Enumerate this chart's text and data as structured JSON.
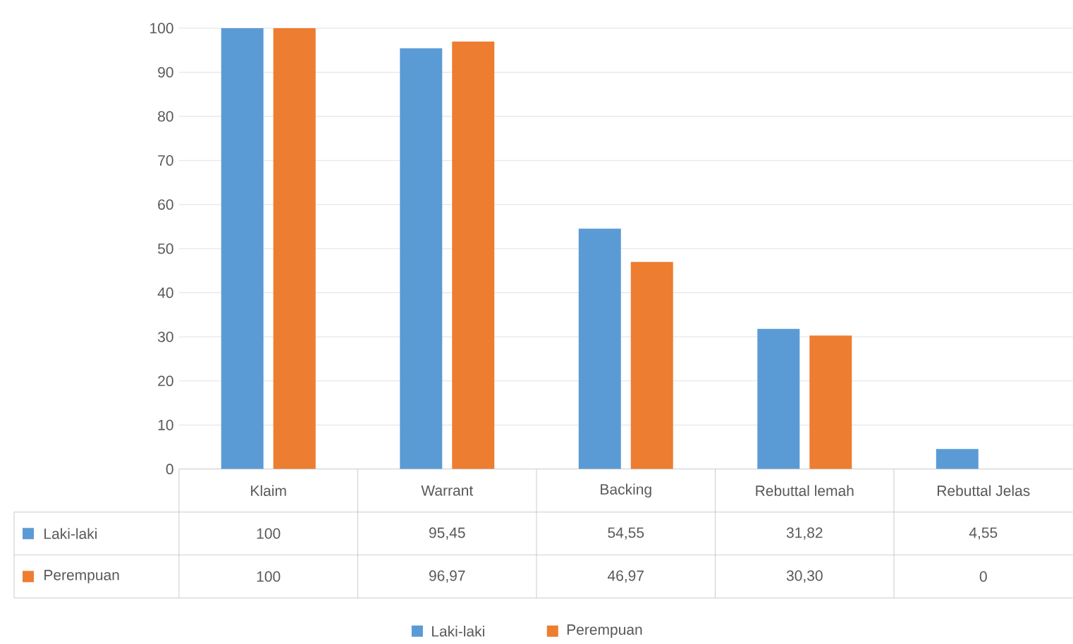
{
  "chart_data": {
    "type": "bar",
    "categories": [
      "Klaim",
      "Warrant",
      "Backing",
      "Rebuttal lemah",
      "Rebuttal Jelas"
    ],
    "series": [
      {
        "name": "Laki-laki",
        "color": "#5b9bd5",
        "values": [
          100,
          95.45,
          54.55,
          31.82,
          4.55
        ],
        "value_labels": [
          "100",
          "95,45",
          "54,55",
          "31,82",
          "4,55"
        ]
      },
      {
        "name": "Perempuan",
        "color": "#ed7d31",
        "values": [
          100,
          96.97,
          46.97,
          30.3,
          0
        ],
        "value_labels": [
          "100",
          "96,97",
          "46,97",
          "30,30",
          "0"
        ]
      }
    ],
    "ylim": [
      0,
      100
    ],
    "yticks": [
      0,
      10,
      20,
      30,
      40,
      50,
      60,
      70,
      80,
      90,
      100
    ],
    "grid": "y",
    "legend": "bottom"
  }
}
